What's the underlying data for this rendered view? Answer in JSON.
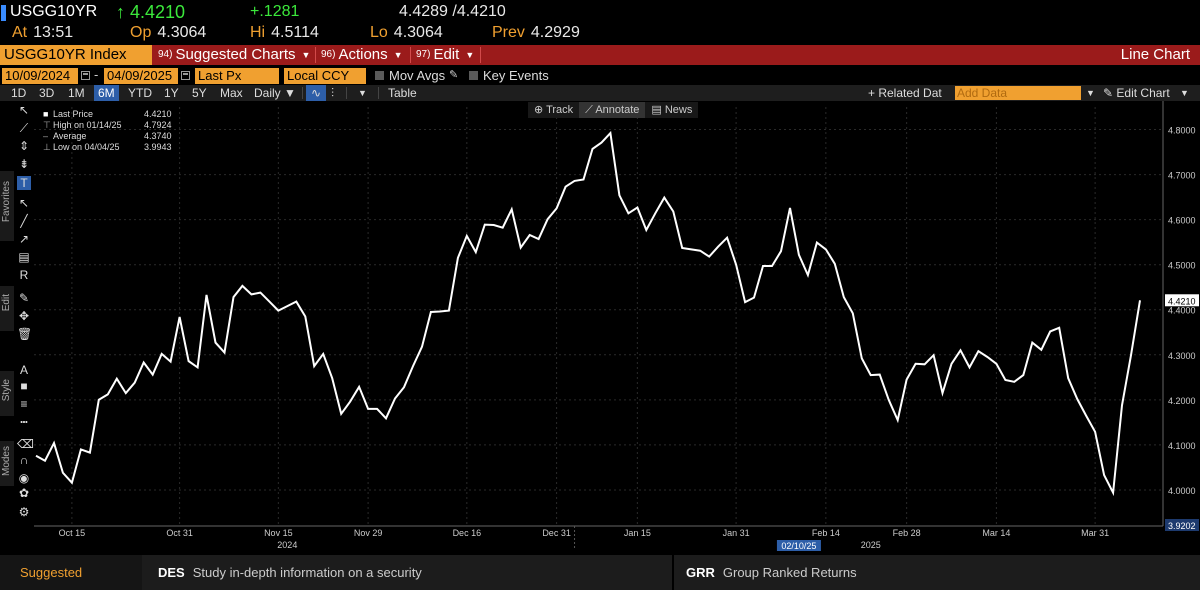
{
  "quote": {
    "ticker": "USGG10YR",
    "last": "↑ 4.4210",
    "change": "+.1281",
    "bid_ask": "4.4289 /4.4210",
    "at_label": "At",
    "at_value": "13:51",
    "open_label": "Op",
    "open_value": "4.3064",
    "high_label": "Hi",
    "high_value": "4.5114",
    "low_label": "Lo",
    "low_value": "4.3064",
    "prev_label": "Prev",
    "prev_value": "4.2929"
  },
  "menubar": {
    "ticker": "USGG10YR Index",
    "items": [
      {
        "num": "94)",
        "label": "Suggested Charts"
      },
      {
        "num": "96)",
        "label": "Actions"
      },
      {
        "num": "97)",
        "label": "Edit"
      }
    ],
    "right_label": "Line Chart"
  },
  "settings": {
    "start_date": "10/09/2024",
    "end_date": "04/09/2025",
    "dash": "-",
    "field": "Last Px",
    "currency": "Local CCY",
    "mov_avgs": "Mov Avgs",
    "key_events": "Key Events"
  },
  "toolbar": {
    "periods": [
      "1D",
      "3D",
      "1M",
      "6M",
      "YTD",
      "1Y",
      "5Y",
      "Max"
    ],
    "active_period": "6M",
    "frequency": "Daily ▼",
    "table": "Table",
    "related": "+ Related Dat",
    "add_data_placeholder": "Add Data",
    "edit_chart": "Edit Chart"
  },
  "sidebar": {
    "tabs": [
      "Favorites",
      "Edit",
      "Style",
      "Modes"
    ]
  },
  "chart_tools": {
    "track": "Track",
    "annotate": "Annotate",
    "news": "News"
  },
  "legend": {
    "rows": [
      {
        "label": "Last Price",
        "value": "4.4210"
      },
      {
        "label": "High on 01/14/25",
        "value": "4.7924"
      },
      {
        "label": "Average",
        "value": "4.3740"
      },
      {
        "label": "Low on 04/04/25",
        "value": "3.9943"
      }
    ]
  },
  "chart_data": {
    "type": "line",
    "series": [
      {
        "name": "Last Price",
        "values": [
          4.076,
          4.065,
          4.104,
          4.038,
          4.016,
          4.09,
          4.083,
          4.2,
          4.212,
          4.247,
          4.215,
          4.238,
          4.283,
          4.256,
          4.302,
          4.285,
          4.384,
          4.286,
          4.272,
          4.433,
          4.327,
          4.305,
          4.428,
          4.453,
          4.434,
          4.438,
          4.418,
          4.398,
          4.408,
          4.418,
          4.385,
          4.275,
          4.302,
          4.248,
          4.169,
          4.196,
          4.229,
          4.18,
          4.18,
          4.159,
          4.203,
          4.228,
          4.275,
          4.318,
          4.395,
          4.396,
          4.398,
          4.515,
          4.564,
          4.528,
          4.589,
          4.588,
          4.582,
          4.623,
          4.538,
          4.566,
          4.557,
          4.601,
          4.625,
          4.673,
          4.686,
          4.689,
          4.757,
          4.771,
          4.792,
          4.654,
          4.614,
          4.627,
          4.577,
          4.614,
          4.649,
          4.618,
          4.537,
          4.534,
          4.531,
          4.518,
          4.54,
          4.56,
          4.5,
          4.417,
          4.427,
          4.497,
          4.497,
          4.53,
          4.626,
          4.522,
          4.477,
          4.549,
          4.534,
          4.502,
          4.428,
          4.392,
          4.292,
          4.255,
          4.256,
          4.2,
          4.155,
          4.245,
          4.28,
          4.279,
          4.299,
          4.215,
          4.28,
          4.31,
          4.272,
          4.308,
          4.295,
          4.28,
          4.244,
          4.24,
          4.255,
          4.327,
          4.311,
          4.352,
          4.36,
          4.248,
          4.202,
          4.165,
          4.129,
          4.033,
          3.994,
          4.188,
          4.299,
          4.421
        ]
      }
    ],
    "x_tick_labels": [
      {
        "label": "Oct 15",
        "index": 4
      },
      {
        "label": "Oct 31",
        "index": 16
      },
      {
        "label": "Nov 15",
        "index": 27
      },
      {
        "label": "Nov 29",
        "index": 37
      },
      {
        "label": "Dec 16",
        "index": 48
      },
      {
        "label": "Dec 31",
        "index": 58
      },
      {
        "label": "Jan 15",
        "index": 67
      },
      {
        "label": "Jan 31",
        "index": 78
      },
      {
        "label": "Feb 14",
        "index": 88
      },
      {
        "label": "Feb 28",
        "index": 97
      },
      {
        "label": "Mar 14",
        "index": 107
      },
      {
        "label": "Mar 31",
        "index": 118
      }
    ],
    "year_labels": [
      {
        "label": "2024",
        "index": 28
      },
      {
        "label": "2025",
        "index": 93
      }
    ],
    "cursor_label": {
      "label": "02/10/25",
      "index": 85
    },
    "y_ticks": [
      "4.8000",
      "4.7000",
      "4.6000",
      "4.5000",
      "4.4000",
      "4.3000",
      "4.2000",
      "4.1000",
      "4.0000"
    ],
    "last_value_label": "4.4210",
    "bottom_value_label": "3.9202",
    "ylim": [
      3.92,
      4.85
    ],
    "grid": true,
    "line_color": "#ffffff"
  },
  "footer": {
    "suggested": "Suggested Functions",
    "items": [
      {
        "code": "DES",
        "text": "Study in-depth information on a security"
      },
      {
        "code": "GRR",
        "text": "Group Ranked Returns"
      }
    ]
  },
  "colors": {
    "accent_orange": "#f0a030",
    "menubar_red": "#9b1b1b",
    "up_green": "#3be83b",
    "active_blue": "#2d5ea8"
  }
}
